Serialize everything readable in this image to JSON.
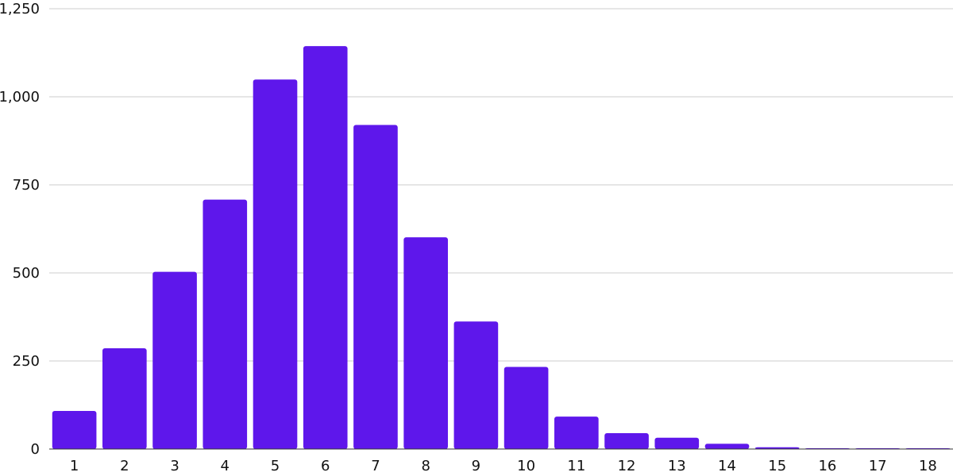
{
  "chart_data": {
    "type": "bar",
    "title": "",
    "xlabel": "",
    "ylabel": "",
    "categories": [
      "1",
      "2",
      "3",
      "4",
      "5",
      "6",
      "7",
      "8",
      "9",
      "10",
      "11",
      "12",
      "13",
      "14",
      "15",
      "16",
      "17",
      "18"
    ],
    "values": [
      108,
      286,
      503,
      708,
      1049,
      1144,
      920,
      601,
      362,
      233,
      92,
      45,
      32,
      15,
      5,
      2,
      2,
      2
    ],
    "ylim": [
      0,
      1250
    ],
    "yticks": [
      0,
      250,
      500,
      750,
      1000,
      1250
    ],
    "ytick_labels": [
      "0",
      "250",
      "500",
      "750",
      "1,000",
      "1,250"
    ],
    "grid": true,
    "legend": "none",
    "bar_color": "#5e17eb"
  }
}
